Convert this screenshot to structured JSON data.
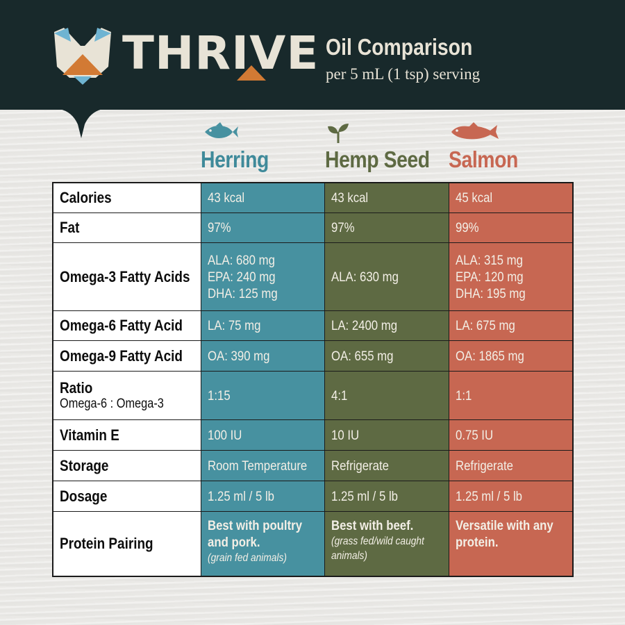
{
  "brand": {
    "name": "THRIVE",
    "colors": {
      "header_bg": "#18292b",
      "cream": "#e8e3d6",
      "teal": "#4791a0",
      "olive": "#5e6a43",
      "salmon": "#c76752",
      "accent_orange": "#d27a34",
      "accent_blue": "#6fb4d2"
    }
  },
  "header": {
    "title": "Oil Comparison",
    "subtitle": "per 5 mL (1 tsp) serving"
  },
  "columns": [
    {
      "name": "Herring",
      "icon": "fish-icon",
      "color": "#4791a0"
    },
    {
      "name": "Hemp Seed",
      "icon": "sprout-icon",
      "color": "#5e6a43"
    },
    {
      "name": "Salmon",
      "icon": "salmon-icon",
      "color": "#c76752"
    }
  ],
  "rows": [
    {
      "label": "Calories",
      "values": [
        [
          "43 kcal"
        ],
        [
          "43 kcal"
        ],
        [
          "45 kcal"
        ]
      ]
    },
    {
      "label": "Fat",
      "values": [
        [
          "97%"
        ],
        [
          "97%"
        ],
        [
          "99%"
        ]
      ]
    },
    {
      "label": "Omega-3 Fatty Acids",
      "values": [
        [
          "ALA: 680 mg",
          "EPA: 240 mg",
          "DHA: 125 mg"
        ],
        [
          "ALA: 630 mg"
        ],
        [
          "ALA: 315 mg",
          "EPA: 120 mg",
          "DHA: 195 mg"
        ]
      ]
    },
    {
      "label": "Omega-6 Fatty Acid",
      "values": [
        [
          "LA: 75 mg"
        ],
        [
          "LA: 2400 mg"
        ],
        [
          "LA: 675 mg"
        ]
      ]
    },
    {
      "label": "Omega-9 Fatty Acid",
      "values": [
        [
          "OA: 390 mg"
        ],
        [
          "OA: 655 mg"
        ],
        [
          "OA: 1865 mg"
        ]
      ]
    },
    {
      "label": "Ratio",
      "sublabel": "Omega-6 : Omega-3",
      "values": [
        [
          "1:15"
        ],
        [
          "4:1"
        ],
        [
          "1:1"
        ]
      ]
    },
    {
      "label": "Vitamin E",
      "values": [
        [
          "100 IU"
        ],
        [
          "10 IU"
        ],
        [
          "0.75 IU"
        ]
      ]
    },
    {
      "label": "Storage",
      "values": [
        [
          "Room Temperature"
        ],
        [
          "Refrigerate"
        ],
        [
          "Refrigerate"
        ]
      ]
    },
    {
      "label": "Dosage",
      "values": [
        [
          "1.25 ml / 5 lb"
        ],
        [
          "1.25 ml / 5 lb"
        ],
        [
          "1.25 ml / 5 lb"
        ]
      ]
    },
    {
      "label": "Protein Pairing",
      "values": [
        [
          "Best with poultry",
          "and pork."
        ],
        [
          "Best with beef."
        ],
        [
          "Versatile with any",
          "protein."
        ]
      ],
      "notes": [
        [
          "(grain fed animals)"
        ],
        [
          "(grass fed/wild caught",
          "animals)"
        ],
        []
      ]
    }
  ]
}
